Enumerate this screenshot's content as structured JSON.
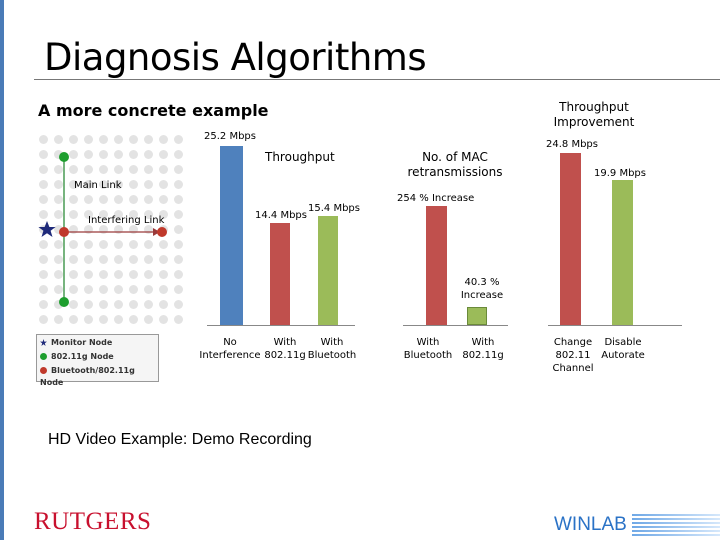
{
  "slide": {
    "title": "Diagnosis Algorithms",
    "subtitle": "A more concrete example",
    "demo_text": "HD Video Example: Demo Recording",
    "logos": {
      "rutgers": "RUTGERS",
      "winlab": "WINLAB"
    }
  },
  "topology": {
    "main_link_label": "Main Link",
    "interfering_link_label": "Interfering Link",
    "legend": [
      {
        "label": "Monitor Node",
        "symbol": "star-icon",
        "color": "#1f2a7a"
      },
      {
        "label": "802.11g Node",
        "symbol": "circle-icon",
        "color": "#1e9e2e"
      },
      {
        "label": "Bluetooth/802.11g Node",
        "symbol": "circle-icon",
        "color": "#c0392b"
      }
    ]
  },
  "colors": {
    "blue": "#4f81bd",
    "red": "#c0504d",
    "green": "#9bbb59",
    "accent": "#4a7bb7"
  },
  "chart_data": [
    {
      "type": "bar",
      "title": "Throughput",
      "categories": [
        "No Interference",
        "With 802.11g",
        "With Bluetooth"
      ],
      "category_label_lines": [
        [
          "No",
          "Interference"
        ],
        [
          "With",
          "802.11g"
        ],
        [
          "With",
          "Bluetooth"
        ]
      ],
      "values": [
        25.2,
        14.4,
        15.4
      ],
      "data_labels": [
        "25.2 Mbps",
        "14.4 Mbps",
        "15.4 Mbps"
      ],
      "ylim": [
        0,
        25.2
      ]
    },
    {
      "type": "bar",
      "title": "No. of MAC retransmissions",
      "categories": [
        "With Bluetooth",
        "With 802.11g"
      ],
      "category_label_lines": [
        [
          "With",
          "Bluetooth"
        ],
        [
          "With",
          "802.11g"
        ]
      ],
      "annotations": [
        "254 % Increase",
        "40.3 % Increase"
      ]
    },
    {
      "type": "bar",
      "title": "Throughput Improvement",
      "categories": [
        "Change 802.11 Channel",
        "Disable Autorate"
      ],
      "category_label_lines": [
        [
          "Change",
          "802.11",
          "Channel"
        ],
        [
          "Disable",
          "Autorate"
        ]
      ],
      "values": [
        24.8,
        19.9
      ],
      "data_labels": [
        "24.8 Mbps",
        "19.9 Mbps"
      ]
    }
  ]
}
